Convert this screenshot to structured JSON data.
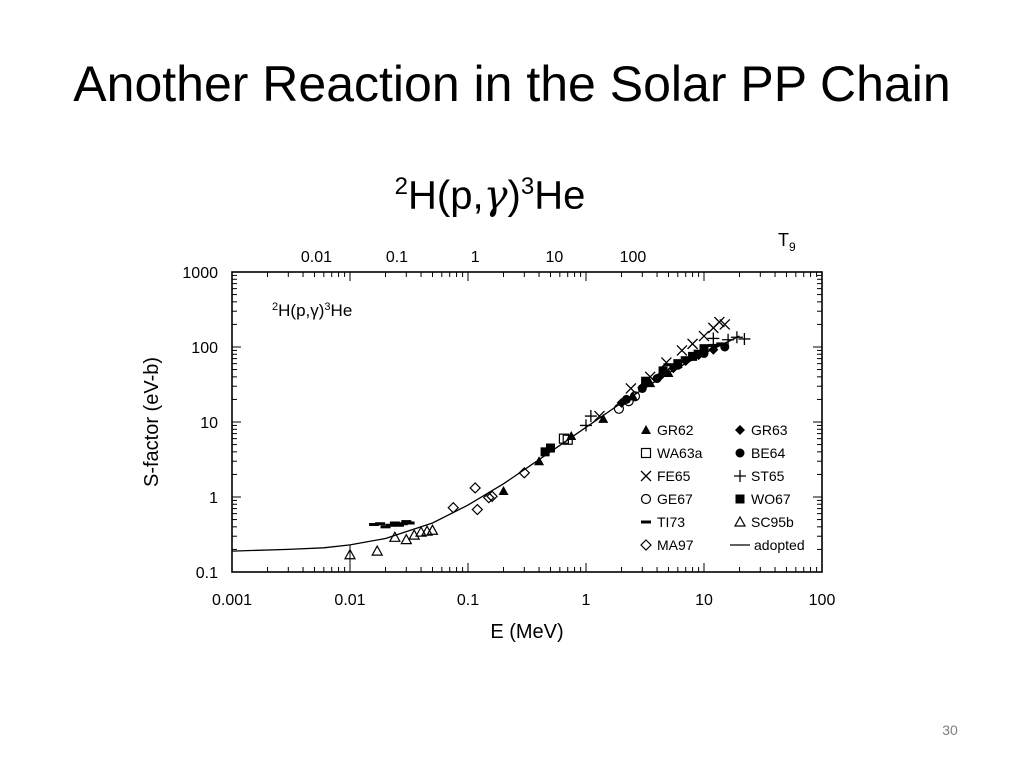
{
  "slide": {
    "title": "Another Reaction in the Solar PP Chain",
    "reaction": {
      "pre": "2",
      "a": "H(p,",
      "gamma": "γ",
      "b": ")",
      "post": "3",
      "c": "He"
    },
    "page_number": "30"
  },
  "chart_data": {
    "type": "scatter",
    "title": "2H(p,γ)3He",
    "xlabel": "E (MeV)",
    "ylabel": "S-factor (eV-b)",
    "x_scale": "log",
    "y_scale": "log",
    "xlim": [
      0.001,
      100
    ],
    "ylim": [
      0.1,
      1000
    ],
    "x_ticks": [
      {
        "v": 0.001,
        "label": "0.001"
      },
      {
        "v": 0.01,
        "label": "0.01"
      },
      {
        "v": 0.1,
        "label": "0.1"
      },
      {
        "v": 1,
        "label": "1"
      },
      {
        "v": 10,
        "label": "10"
      },
      {
        "v": 100,
        "label": "100"
      }
    ],
    "y_ticks": [
      {
        "v": 0.1,
        "label": "0.1"
      },
      {
        "v": 1,
        "label": "1"
      },
      {
        "v": 10,
        "label": "10"
      },
      {
        "v": 100,
        "label": "100"
      },
      {
        "v": 1000,
        "label": "1000"
      }
    ],
    "top_axis": {
      "label": "T9",
      "ticks": [
        {
          "label": "0.01",
          "x": 0.0052
        },
        {
          "label": "0.1",
          "x": 0.025
        },
        {
          "label": "1",
          "x": 0.115
        },
        {
          "label": "10",
          "x": 0.54
        },
        {
          "label": "100",
          "x": 2.5
        }
      ]
    },
    "grid": false,
    "legend_position": "lower-right",
    "legend": [
      {
        "name": "GR62",
        "marker": "triangle-filled"
      },
      {
        "name": "GR63",
        "marker": "diamond-filled"
      },
      {
        "name": "WA63a",
        "marker": "square-open"
      },
      {
        "name": "BE64",
        "marker": "circle-filled"
      },
      {
        "name": "FE65",
        "marker": "x"
      },
      {
        "name": "ST65",
        "marker": "plus"
      },
      {
        "name": "GE67",
        "marker": "circle-open"
      },
      {
        "name": "WO67",
        "marker": "square-filled"
      },
      {
        "name": "TI73",
        "marker": "dash"
      },
      {
        "name": "SC95b",
        "marker": "triangle-open"
      },
      {
        "name": "MA97",
        "marker": "diamond-open"
      },
      {
        "name": "adopted",
        "marker": "line"
      }
    ],
    "series": [
      {
        "name": "GR62",
        "marker": "triangle-filled",
        "points": [
          [
            0.2,
            1.2
          ],
          [
            0.4,
            3.0
          ],
          [
            0.75,
            6.5
          ],
          [
            1.4,
            11
          ],
          [
            2.5,
            22
          ],
          [
            3.5,
            33
          ],
          [
            5,
            45
          ]
        ]
      },
      {
        "name": "GR63",
        "marker": "diamond-filled",
        "points": [
          [
            2.0,
            18
          ],
          [
            3.0,
            29
          ],
          [
            4.2,
            40
          ],
          [
            5.5,
            52
          ],
          [
            7,
            65
          ],
          [
            9,
            78
          ],
          [
            12,
            92
          ]
        ]
      },
      {
        "name": "WA63a",
        "marker": "square-open",
        "points": [
          [
            0.65,
            6.0
          ],
          [
            0.7,
            5.8
          ]
        ]
      },
      {
        "name": "BE64",
        "marker": "circle-filled",
        "points": [
          [
            2.2,
            20
          ],
          [
            3.0,
            28
          ],
          [
            4.0,
            38
          ],
          [
            6.0,
            57
          ],
          [
            10,
            82
          ],
          [
            15,
            100
          ]
        ]
      },
      {
        "name": "FE65",
        "marker": "x",
        "points": [
          [
            1.3,
            12
          ],
          [
            2.4,
            28
          ],
          [
            3.5,
            40
          ],
          [
            4.8,
            62
          ],
          [
            6.5,
            90
          ],
          [
            8,
            110
          ],
          [
            10,
            140
          ],
          [
            12,
            180
          ],
          [
            13.5,
            215
          ],
          [
            15,
            200
          ]
        ]
      },
      {
        "name": "ST65",
        "marker": "plus",
        "points": [
          [
            1.0,
            9
          ],
          [
            1.1,
            12
          ],
          [
            12,
            130
          ],
          [
            16,
            125
          ],
          [
            19,
            135
          ],
          [
            22,
            128
          ]
        ]
      },
      {
        "name": "GE67",
        "marker": "circle-open",
        "points": [
          [
            1.9,
            15
          ],
          [
            2.3,
            19
          ],
          [
            2.6,
            22
          ]
        ]
      },
      {
        "name": "WO67",
        "marker": "square-filled",
        "points": [
          [
            0.45,
            4.0
          ],
          [
            0.5,
            4.5
          ],
          [
            3.2,
            35
          ],
          [
            4.5,
            48
          ],
          [
            6,
            60
          ],
          [
            8,
            75
          ],
          [
            10,
            95
          ]
        ]
      },
      {
        "name": "TI73",
        "marker": "dash",
        "points": [
          [
            0.016,
            0.43
          ],
          [
            0.018,
            0.44
          ],
          [
            0.02,
            0.4
          ],
          [
            0.022,
            0.42
          ],
          [
            0.024,
            0.45
          ],
          [
            0.026,
            0.42
          ],
          [
            0.028,
            0.44
          ],
          [
            0.03,
            0.47
          ],
          [
            0.032,
            0.45
          ],
          [
            5,
            58
          ],
          [
            7,
            72
          ],
          [
            9,
            88
          ],
          [
            12,
            105
          ],
          [
            14,
            110
          ]
        ]
      },
      {
        "name": "SC95b",
        "marker": "triangle-open",
        "points": [
          [
            0.01,
            0.17
          ],
          [
            0.017,
            0.19
          ],
          [
            0.024,
            0.29
          ],
          [
            0.03,
            0.27
          ],
          [
            0.035,
            0.31
          ],
          [
            0.04,
            0.34
          ],
          [
            0.045,
            0.35
          ],
          [
            0.05,
            0.36
          ]
        ]
      },
      {
        "name": "MA97",
        "marker": "diamond-open",
        "points": [
          [
            0.075,
            0.72
          ],
          [
            0.115,
            1.32
          ],
          [
            0.12,
            0.68
          ],
          [
            0.15,
            0.98
          ],
          [
            0.16,
            1.02
          ],
          [
            0.3,
            2.1
          ]
        ]
      },
      {
        "name": "adopted",
        "marker": "line",
        "points": [
          [
            0.001,
            0.19
          ],
          [
            0.003,
            0.2
          ],
          [
            0.006,
            0.21
          ],
          [
            0.01,
            0.23
          ],
          [
            0.02,
            0.28
          ],
          [
            0.05,
            0.45
          ],
          [
            0.1,
            0.78
          ],
          [
            0.2,
            1.5
          ],
          [
            0.5,
            4.0
          ],
          [
            1,
            8.5
          ],
          [
            2,
            18
          ],
          [
            5,
            45
          ],
          [
            10,
            82
          ],
          [
            20,
            140
          ]
        ]
      }
    ],
    "colors": {
      "axis": "#000000",
      "markers": "#000000"
    }
  }
}
